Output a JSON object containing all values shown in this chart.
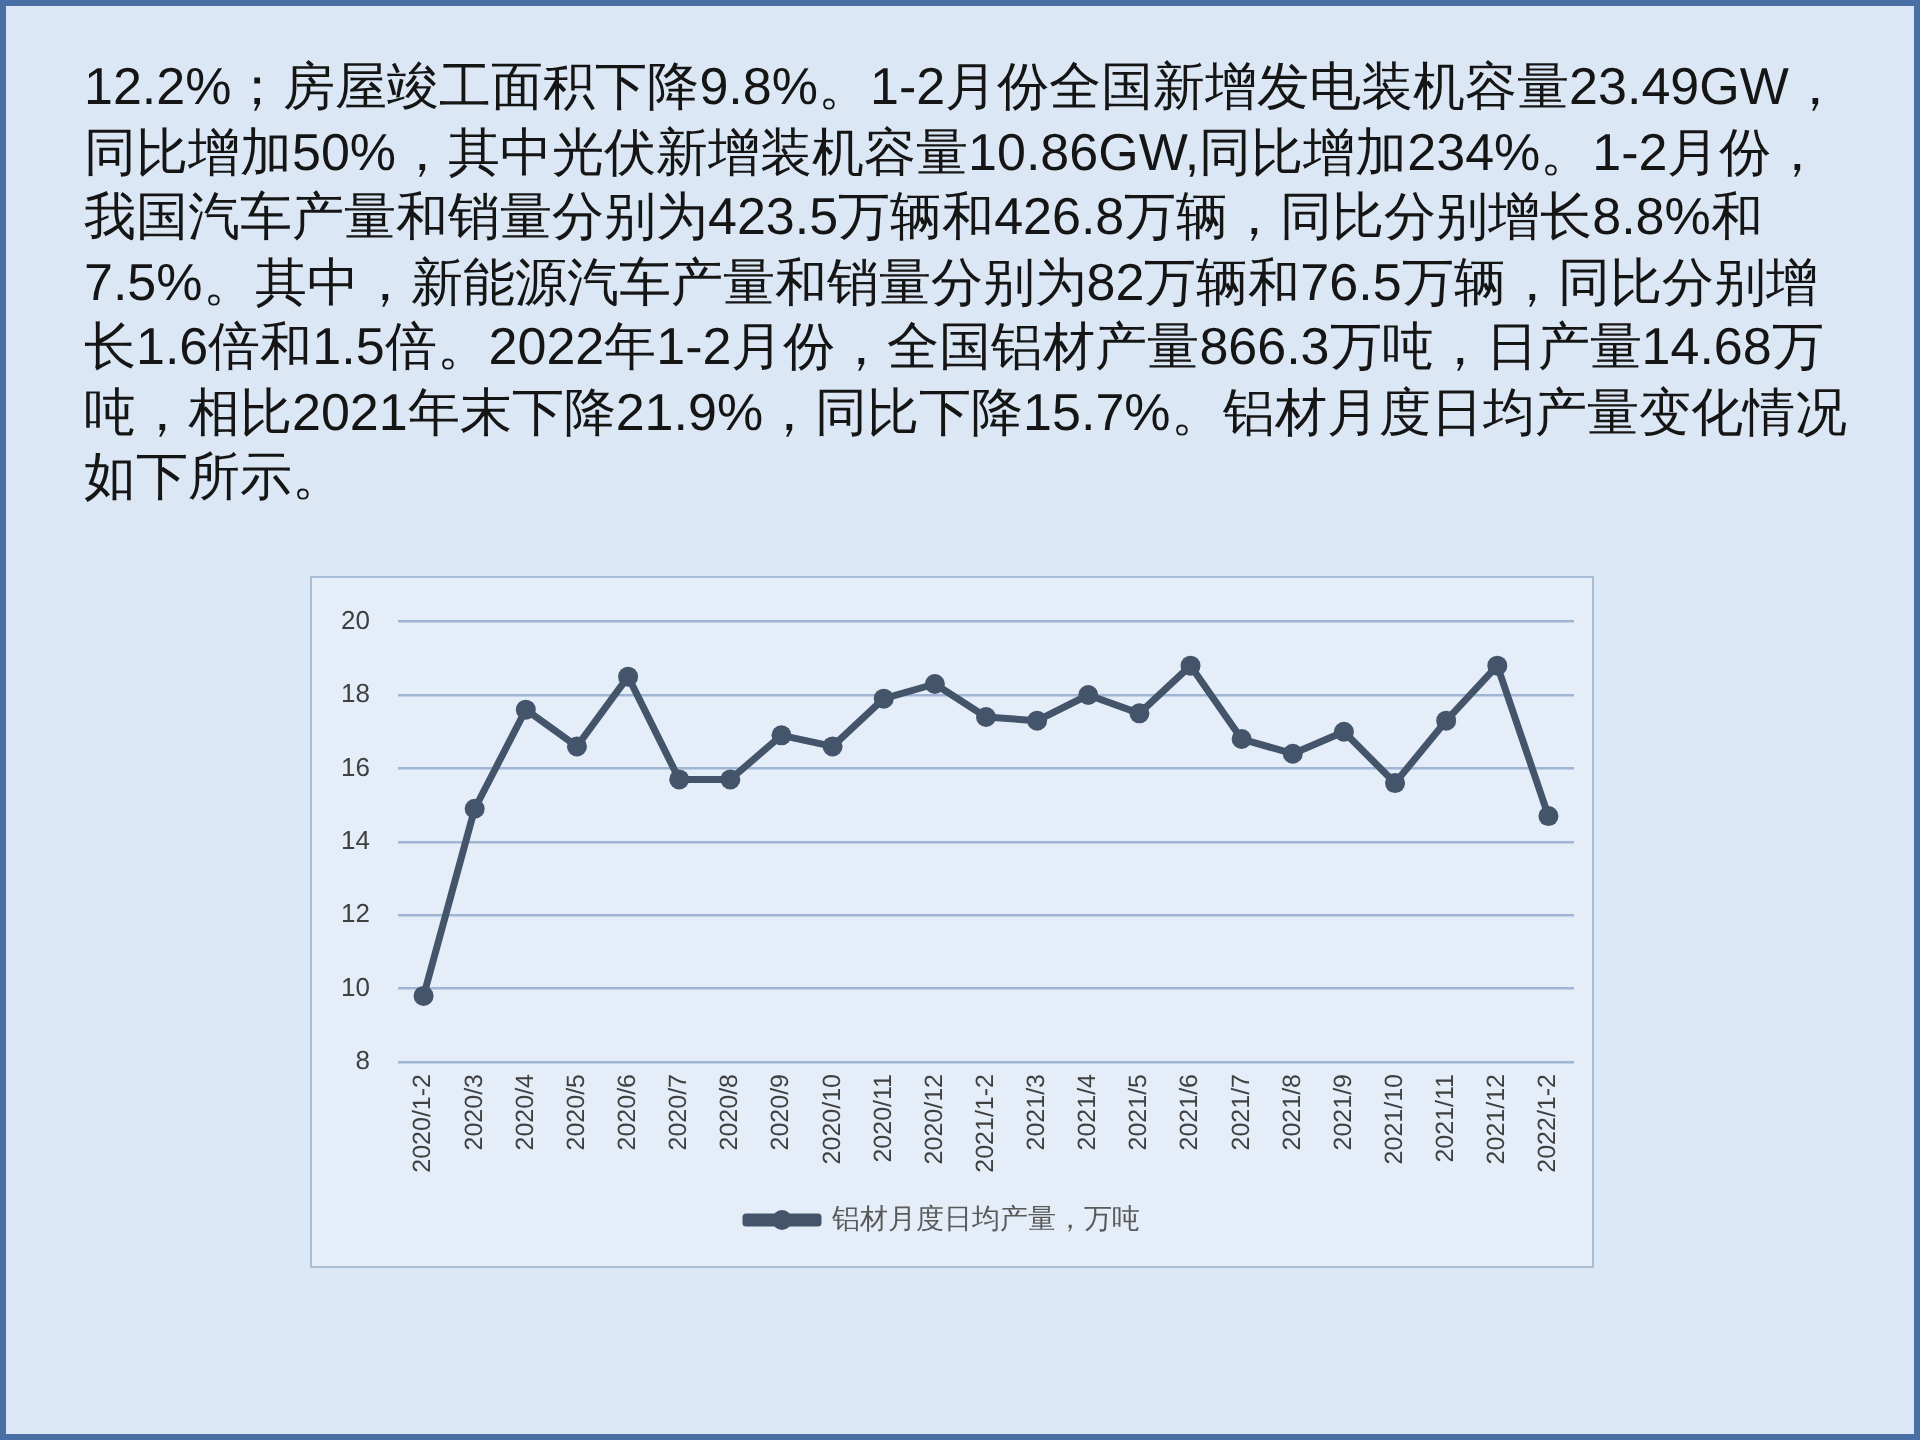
{
  "chart_data": {
    "type": "line",
    "subtitle": "12.2%；房屋竣工面积下降9.8%。1-2月份全国新增发电装机容量23.49GW，同比增加50%，其中光伏新增装机容量10.86GW,同比增加234%。1-2月份，我国汽车产量和销量分别为423.5万辆和426.8万辆，同比分别增长8.8%和7.5%。其中，新能源汽车产量和销量分别为82万辆和76.5万辆，同比分别增长1.6倍和1.5倍。2022年1-2月份，全国铝材产量866.3万吨，日产量14.68万吨，相比2021年末下降21.9%，同比下降15.7%。铝材月度日均产量变化情况如下所示。",
    "categories": [
      "2020/1-2",
      "2020/3",
      "2020/4",
      "2020/5",
      "2020/6",
      "2020/7",
      "2020/8",
      "2020/9",
      "2020/10",
      "2020/11",
      "2020/12",
      "2021/1-2",
      "2021/3",
      "2021/4",
      "2021/5",
      "2021/6",
      "2021/7",
      "2021/8",
      "2021/9",
      "2021/10",
      "2021/11",
      "2021/12",
      "2022/1-2"
    ],
    "series": [
      {
        "name": "铝材月度日均产量，万吨",
        "color": "#44546a",
        "values": [
          9.8,
          14.9,
          17.6,
          16.6,
          18.5,
          15.7,
          15.7,
          16.9,
          16.6,
          17.9,
          18.3,
          17.4,
          17.3,
          18.0,
          17.5,
          18.8,
          16.8,
          16.4,
          17.0,
          15.6,
          17.3,
          18.8,
          14.7
        ]
      }
    ],
    "ylim": [
      8,
      20
    ],
    "yticks": [
      8,
      10,
      12,
      14,
      16,
      18,
      20
    ],
    "grid": "y",
    "legend": "bottom",
    "marker": "circle",
    "line_style": "solid"
  }
}
